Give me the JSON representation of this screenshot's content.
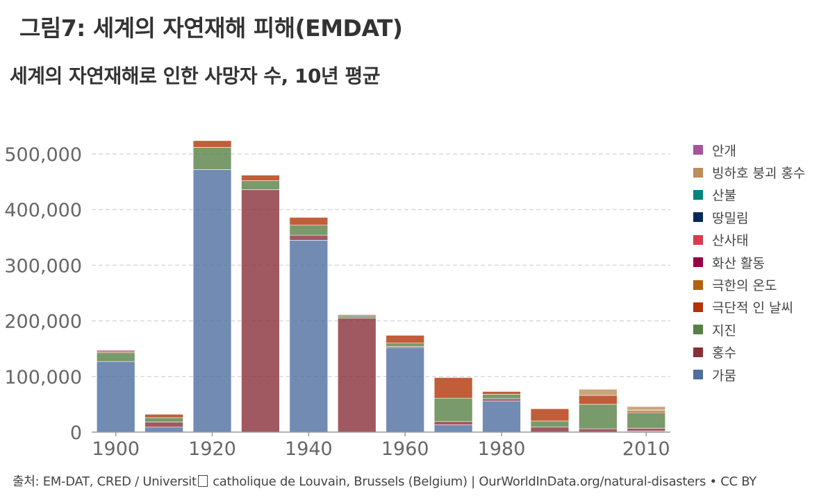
{
  "figure_title": "그림7: 세계의 자연재해 피해(EMDAT)",
  "source": {
    "before_box": "출처: EM-DAT, CRED / Universit",
    "after_box": " catholique de Louvain, Brussels (Belgium) | OurWorldInData.org/natural-disasters  •  CC BY"
  },
  "chart_data": {
    "type": "bar",
    "stacked": true,
    "title": "세계의 자연재해로 인한 사망자 수, 10년 평균",
    "xlabel": "",
    "ylabel": "",
    "categories": [
      "1900",
      "1910",
      "1920",
      "1930",
      "1940",
      "1950",
      "1960",
      "1970",
      "1980",
      "1990",
      "2000",
      "2010"
    ],
    "x_tick_labels": [
      "1900",
      "1920",
      "1940",
      "1960",
      "1980",
      "2010"
    ],
    "y_ticks": [
      0,
      100000,
      200000,
      300000,
      400000,
      500000
    ],
    "y_tick_labels": [
      "0",
      "100,000",
      "200,000",
      "300,000",
      "400,000",
      "500,000"
    ],
    "ylim": [
      0,
      530000
    ],
    "grid": "horizontal-dashed",
    "legend_position": "right",
    "series": [
      {
        "name": "가뭄",
        "color": "#4e6ea0",
        "values": [
          127000,
          9000,
          472000,
          0,
          345000,
          0,
          152000,
          13000,
          56000,
          0,
          0,
          2000
        ]
      },
      {
        "name": "홍수",
        "color": "#883039",
        "values": [
          0,
          9000,
          0,
          436000,
          9000,
          205000,
          2000,
          6000,
          4000,
          9000,
          6000,
          5000
        ]
      },
      {
        "name": "지진",
        "color": "#578145",
        "values": [
          16000,
          8000,
          40000,
          16000,
          18000,
          4000,
          6000,
          42000,
          8000,
          11000,
          44000,
          28000
        ]
      },
      {
        "name": "극단적 인 날씨",
        "color": "#b13507",
        "values": [
          2000,
          6000,
          12000,
          10000,
          14000,
          2000,
          14000,
          37000,
          5000,
          22000,
          16000,
          3000
        ]
      },
      {
        "name": "극한의 온도",
        "color": "#b16214",
        "values": [
          0,
          0,
          0,
          0,
          0,
          0,
          0,
          0,
          0,
          0,
          0,
          2000
        ]
      },
      {
        "name": "화산 활동",
        "color": "#970046",
        "values": [
          2000,
          0,
          0,
          0,
          0,
          0,
          0,
          0,
          0,
          0,
          0,
          0
        ]
      },
      {
        "name": "산사태",
        "color": "#d73c50",
        "values": [
          0,
          0,
          0,
          0,
          0,
          0,
          0,
          0,
          1000,
          0,
          0,
          0
        ]
      },
      {
        "name": "땅밀림",
        "color": "#00295b",
        "values": [
          0,
          0,
          0,
          0,
          0,
          0,
          0,
          0,
          0,
          0,
          0,
          0
        ]
      },
      {
        "name": "산불",
        "color": "#00847e",
        "values": [
          0,
          0,
          0,
          0,
          0,
          0,
          0,
          0,
          0,
          0,
          0,
          0
        ]
      },
      {
        "name": "빙하호 붕괴 홍수",
        "color": "#bc8e5a",
        "values": [
          0,
          0,
          0,
          0,
          0,
          0,
          0,
          0,
          0,
          0,
          11000,
          6000
        ]
      },
      {
        "name": "안개",
        "color": "#a2559c",
        "values": [
          0,
          0,
          0,
          0,
          0,
          0,
          0,
          0,
          0,
          0,
          0,
          0
        ]
      }
    ]
  }
}
